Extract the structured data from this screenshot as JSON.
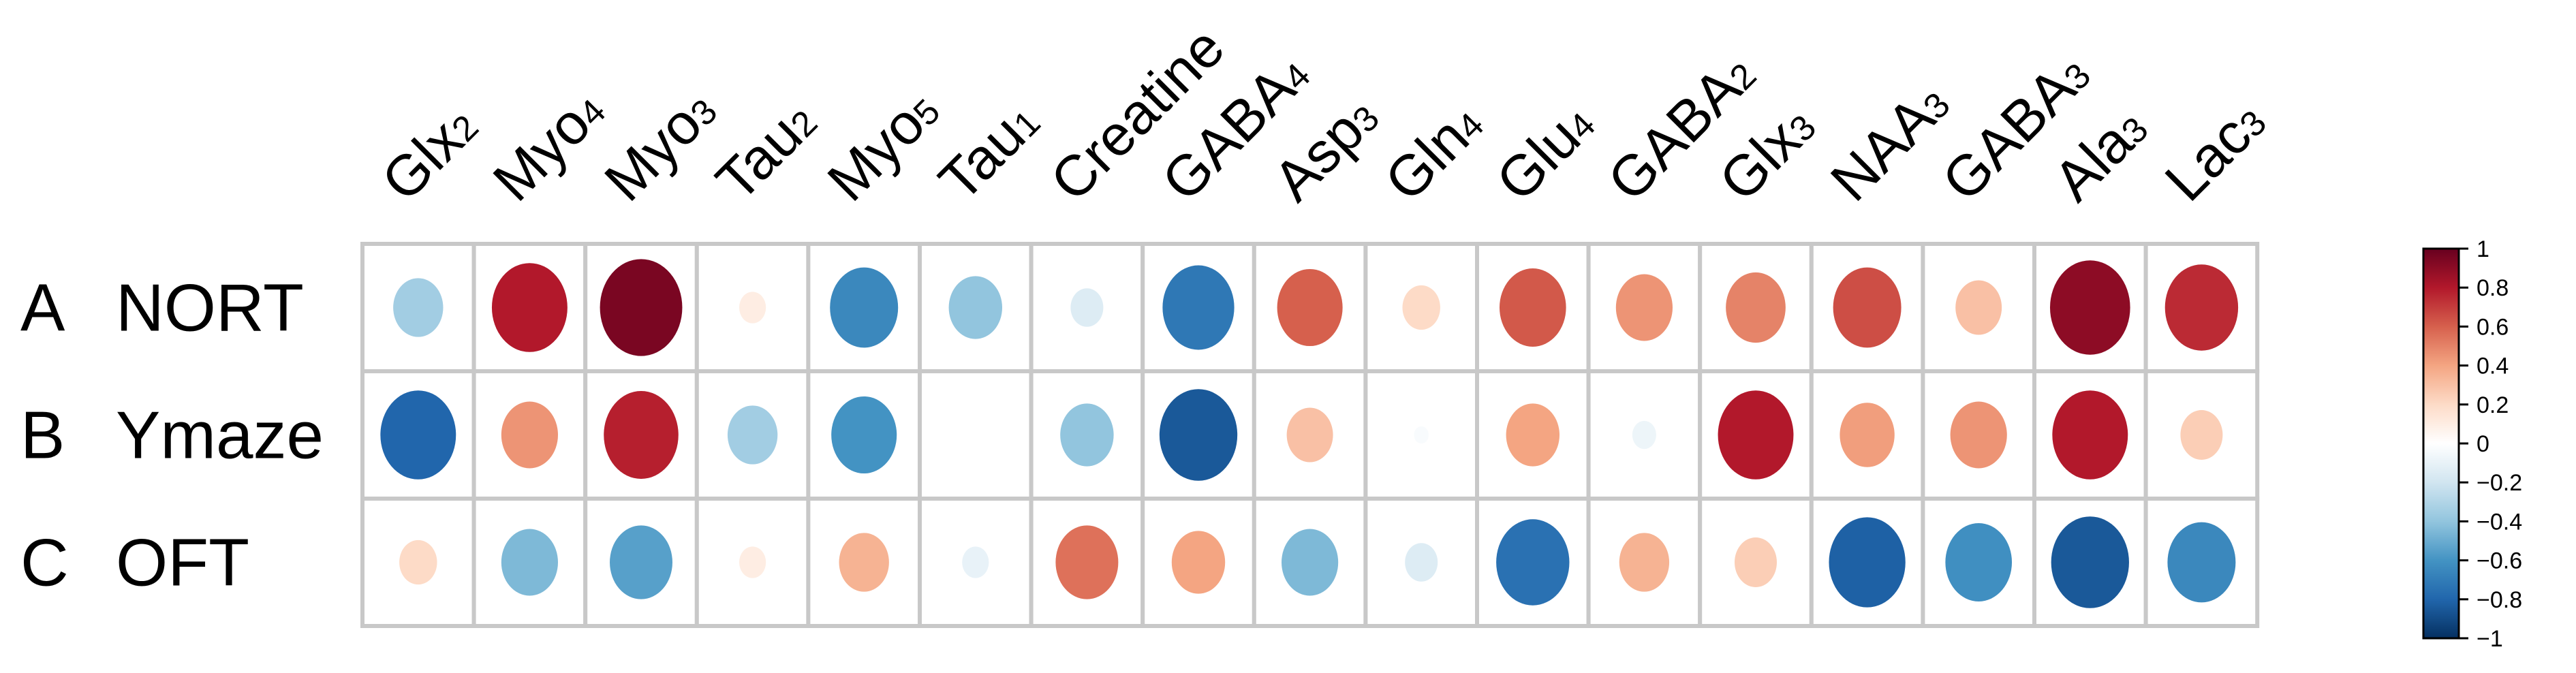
{
  "chart_data": {
    "type": "heatmap",
    "title": "",
    "columns": [
      "Glx2",
      "Myo4",
      "Myo3",
      "Tau2",
      "Myo5",
      "Tau1",
      "Creatine",
      "GABA4",
      "Asp3",
      "Gln4",
      "Glu4",
      "GABA2",
      "Glx3",
      "NAA3",
      "GABA3",
      "Ala3",
      "Lac3"
    ],
    "column_display": [
      [
        "Glx",
        "2"
      ],
      [
        "Myo",
        "4"
      ],
      [
        "Myo",
        "3"
      ],
      [
        "Tau",
        "2"
      ],
      [
        "Myo",
        "5"
      ],
      [
        "Tau",
        "1"
      ],
      [
        "Creatine",
        ""
      ],
      [
        "GABA",
        "4"
      ],
      [
        "Asp",
        "3"
      ],
      [
        "Gln",
        "4"
      ],
      [
        "Glu",
        "4"
      ],
      [
        "GABA",
        "2"
      ],
      [
        "Glx",
        "3"
      ],
      [
        "NAA",
        "3"
      ],
      [
        "GABA",
        "3"
      ],
      [
        "Ala",
        "3"
      ],
      [
        "Lac",
        "3"
      ]
    ],
    "rows": [
      {
        "letter": "A",
        "name": "NORT"
      },
      {
        "letter": "B",
        "name": "Ymaze"
      },
      {
        "letter": "C",
        "name": "OFT"
      }
    ],
    "values": [
      [
        -0.35,
        0.8,
        0.95,
        0.1,
        -0.65,
        -0.4,
        -0.15,
        -0.72,
        0.6,
        0.2,
        0.62,
        0.45,
        0.5,
        0.65,
        0.3,
        0.9,
        0.75
      ],
      [
        -0.8,
        0.45,
        0.78,
        -0.35,
        -0.6,
        0.0,
        -0.4,
        -0.85,
        0.3,
        -0.03,
        0.4,
        -0.08,
        0.8,
        0.42,
        0.45,
        0.8,
        0.25
      ],
      [
        0.2,
        -0.45,
        -0.55,
        0.1,
        0.35,
        -0.1,
        0.55,
        0.4,
        -0.45,
        -0.15,
        -0.75,
        0.35,
        0.25,
        -0.82,
        -0.62,
        -0.85,
        -0.65
      ]
    ],
    "colorbar": {
      "min": -1,
      "max": 1,
      "ticks": [
        "1",
        "0.8",
        "0.6",
        "0.4",
        "0.2",
        "0",
        "−0.2",
        "−0.4",
        "−0.6",
        "−0.8",
        "−1"
      ],
      "tick_values": [
        1,
        0.8,
        0.6,
        0.4,
        0.2,
        0,
        -0.2,
        -0.4,
        -0.6,
        -0.8,
        -1
      ],
      "colors": [
        "#67001f",
        "#b2182b",
        "#d6604d",
        "#f4a582",
        "#fddbc7",
        "#ffffff",
        "#d1e5f0",
        "#92c5de",
        "#4393c3",
        "#2166ac",
        "#053061"
      ]
    },
    "grid": true,
    "legend": "right"
  }
}
